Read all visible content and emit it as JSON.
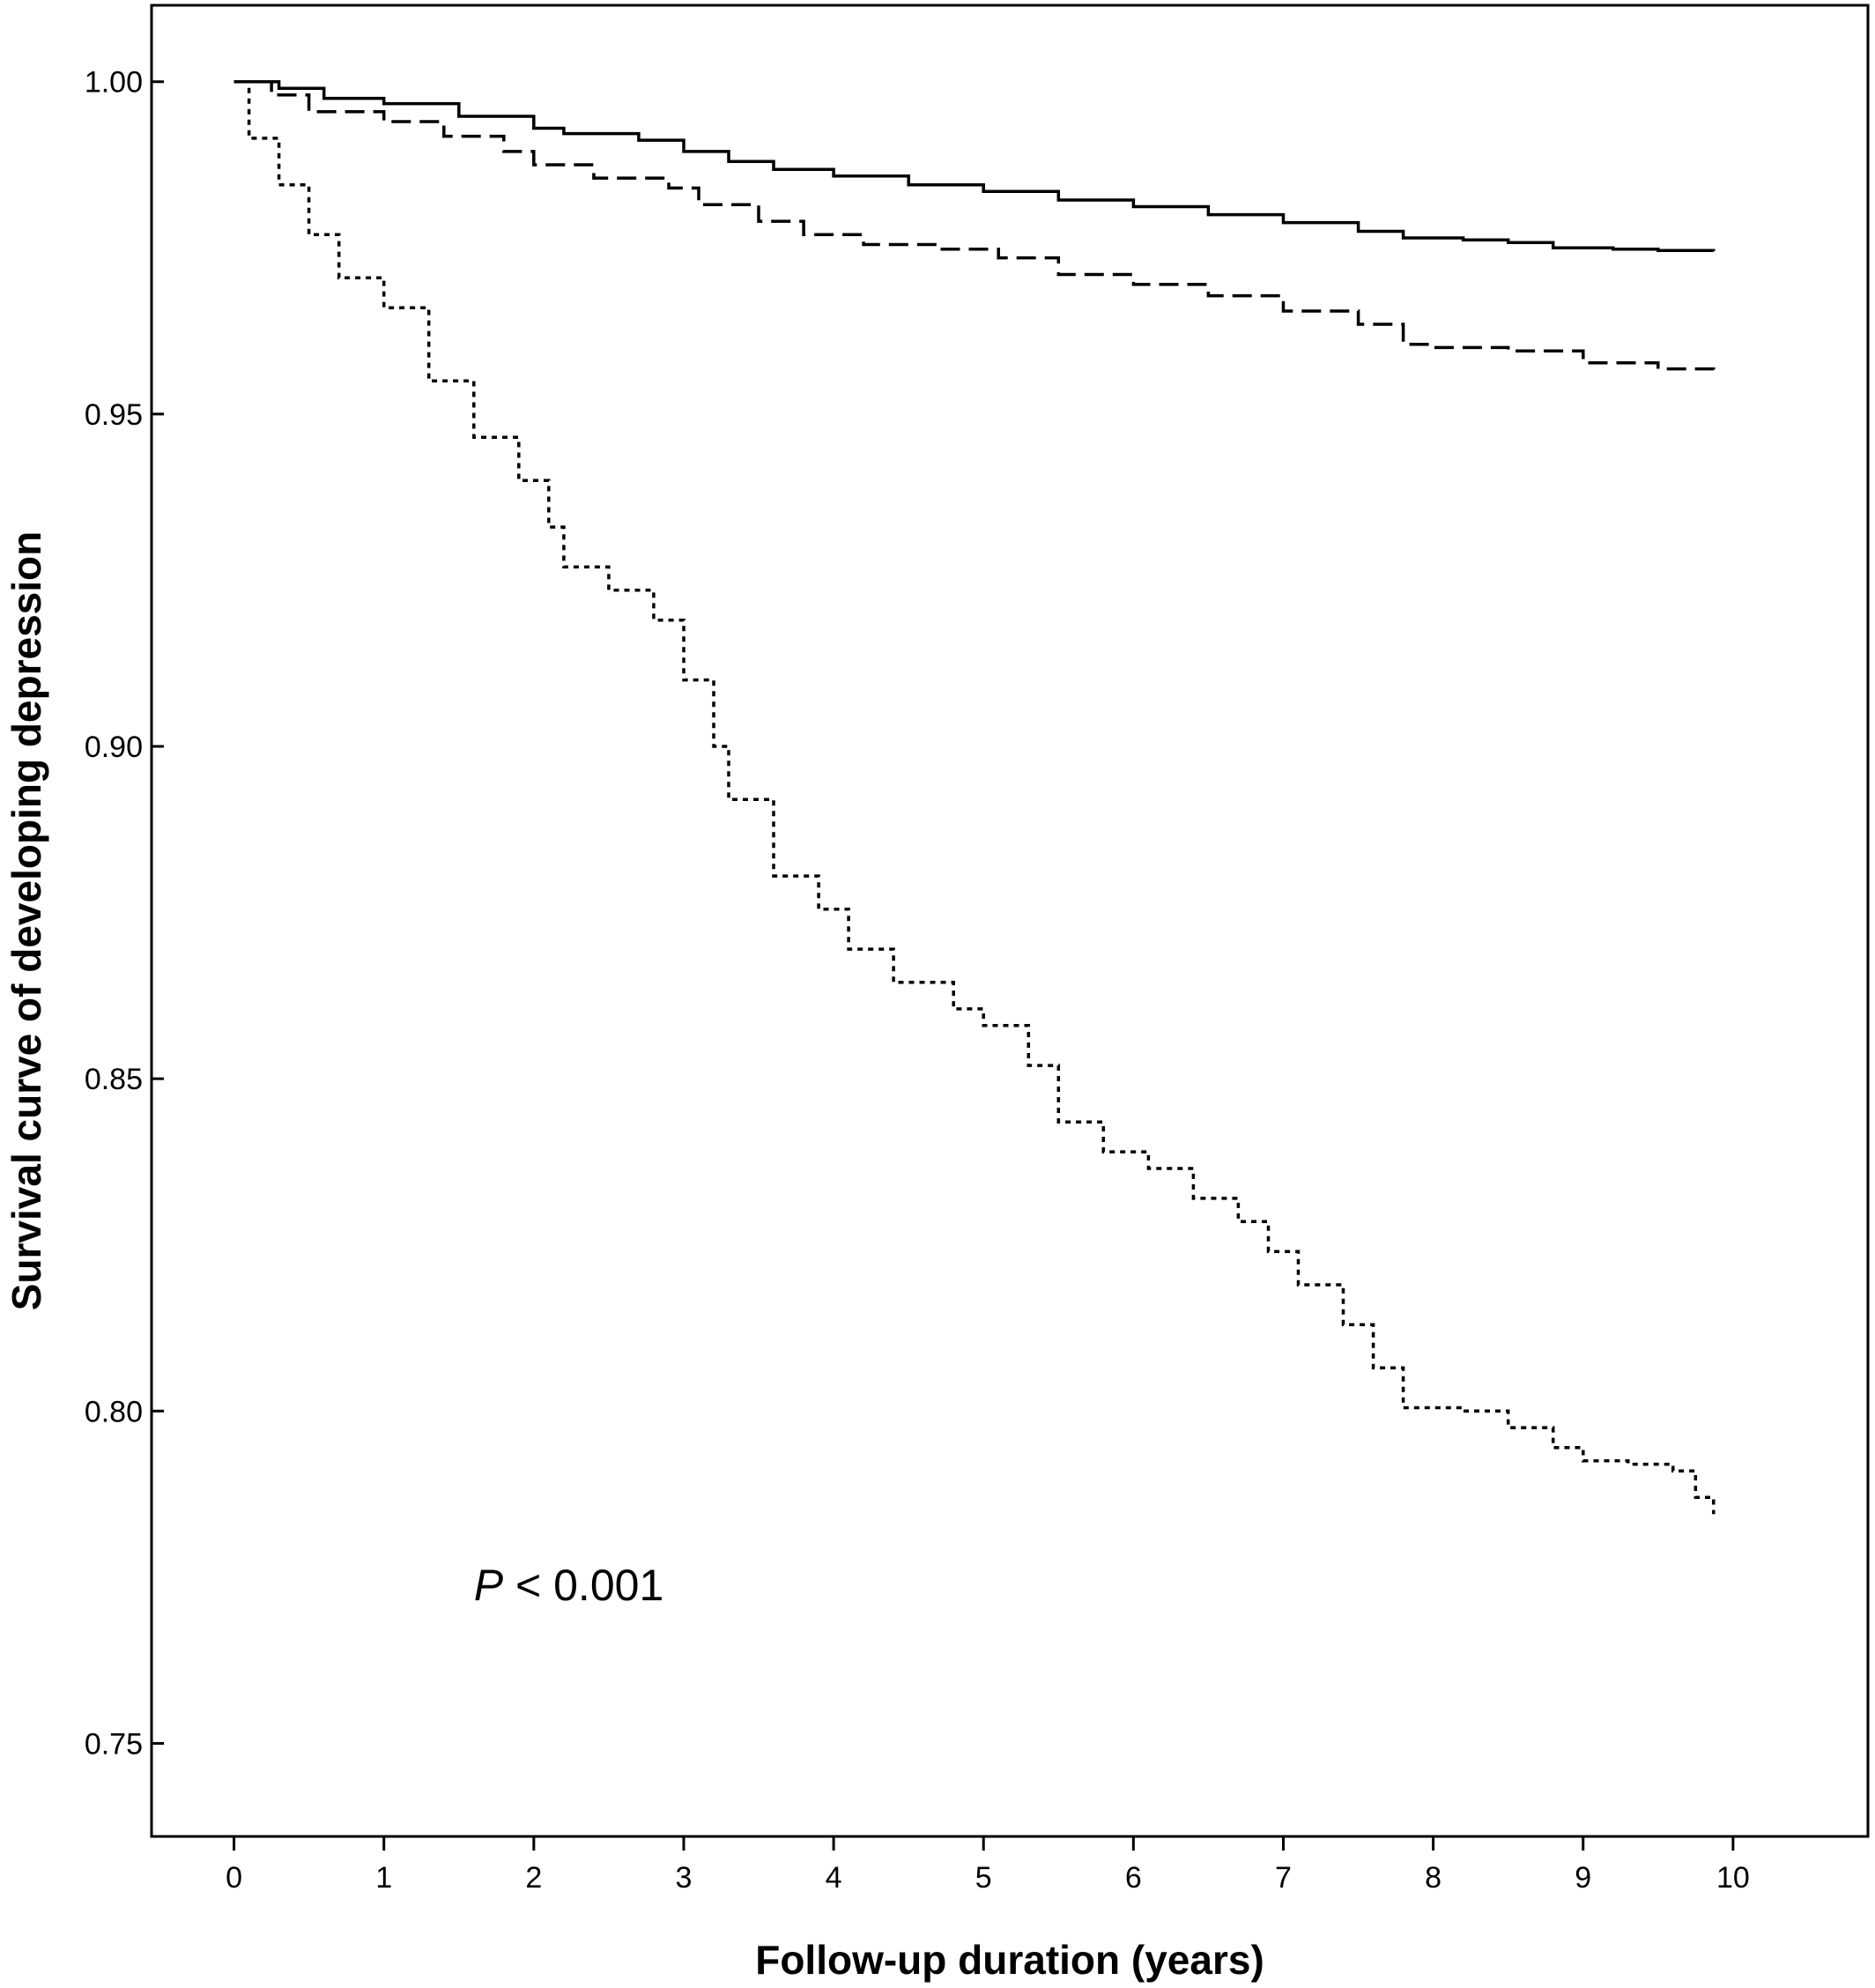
{
  "chart_data": {
    "type": "line",
    "title": "",
    "xlabel": "Follow-up duration (years)",
    "ylabel": "Survival curve of developing depression",
    "xlim": [
      -0.55,
      10.9
    ],
    "ylim": [
      0.736,
      1.0115
    ],
    "x_ticks": [
      "0",
      "1",
      "2",
      "3",
      "4",
      "5",
      "6",
      "7",
      "8",
      "9",
      "10"
    ],
    "y_ticks": [
      "0.75",
      "0.80",
      "0.85",
      "0.90",
      "0.95",
      "1.00"
    ],
    "grid": false,
    "legend": "none",
    "annotation": {
      "italic_part": "P",
      "text_part": " < 0.001",
      "x": 1.6,
      "y": 0.7715
    },
    "series": [
      {
        "style": "solid",
        "points": [
          [
            0,
            1.0
          ],
          [
            0.3,
            0.999
          ],
          [
            0.6,
            0.9975
          ],
          [
            1.0,
            0.9967
          ],
          [
            1.5,
            0.9948
          ],
          [
            2.0,
            0.993
          ],
          [
            2.2,
            0.9922
          ],
          [
            2.7,
            0.9912
          ],
          [
            3.0,
            0.9895
          ],
          [
            3.3,
            0.988
          ],
          [
            3.6,
            0.9868
          ],
          [
            4.0,
            0.9858
          ],
          [
            4.5,
            0.9845
          ],
          [
            5.0,
            0.9835
          ],
          [
            5.5,
            0.9822
          ],
          [
            6.0,
            0.9812
          ],
          [
            6.5,
            0.98
          ],
          [
            7.0,
            0.9788
          ],
          [
            7.5,
            0.9775
          ],
          [
            7.8,
            0.9765
          ],
          [
            8.2,
            0.9762
          ],
          [
            8.5,
            0.9758
          ],
          [
            8.8,
            0.975
          ],
          [
            9.2,
            0.9748
          ],
          [
            9.5,
            0.9746
          ],
          [
            9.87,
            0.9745
          ]
        ]
      },
      {
        "style": "dashed",
        "points": [
          [
            0,
            1.0
          ],
          [
            0.25,
            0.998
          ],
          [
            0.5,
            0.9955
          ],
          [
            1.0,
            0.994
          ],
          [
            1.4,
            0.9918
          ],
          [
            1.8,
            0.9895
          ],
          [
            2.0,
            0.9875
          ],
          [
            2.4,
            0.9855
          ],
          [
            2.9,
            0.984
          ],
          [
            3.1,
            0.9815
          ],
          [
            3.5,
            0.979
          ],
          [
            3.8,
            0.977
          ],
          [
            4.2,
            0.9755
          ],
          [
            4.7,
            0.9748
          ],
          [
            5.1,
            0.9735
          ],
          [
            5.5,
            0.971
          ],
          [
            6.0,
            0.9695
          ],
          [
            6.5,
            0.9678
          ],
          [
            7.0,
            0.9655
          ],
          [
            7.5,
            0.9635
          ],
          [
            7.8,
            0.9605
          ],
          [
            8.0,
            0.96
          ],
          [
            8.5,
            0.9595
          ],
          [
            9.0,
            0.9577
          ],
          [
            9.5,
            0.9568
          ],
          [
            9.87,
            0.9565
          ]
        ]
      },
      {
        "style": "dotted",
        "points": [
          [
            0,
            1.0
          ],
          [
            0.1,
            0.9915
          ],
          [
            0.3,
            0.9845
          ],
          [
            0.5,
            0.977
          ],
          [
            0.7,
            0.9705
          ],
          [
            1.0,
            0.966
          ],
          [
            1.3,
            0.955
          ],
          [
            1.6,
            0.9465
          ],
          [
            1.9,
            0.94
          ],
          [
            2.1,
            0.933
          ],
          [
            2.2,
            0.927
          ],
          [
            2.5,
            0.9235
          ],
          [
            2.8,
            0.919
          ],
          [
            3.0,
            0.91
          ],
          [
            3.2,
            0.9
          ],
          [
            3.3,
            0.892
          ],
          [
            3.6,
            0.8805
          ],
          [
            3.9,
            0.8755
          ],
          [
            4.1,
            0.8695
          ],
          [
            4.4,
            0.8645
          ],
          [
            4.8,
            0.8605
          ],
          [
            5.0,
            0.858
          ],
          [
            5.3,
            0.852
          ],
          [
            5.5,
            0.8435
          ],
          [
            5.8,
            0.839
          ],
          [
            6.1,
            0.8365
          ],
          [
            6.4,
            0.832
          ],
          [
            6.7,
            0.8285
          ],
          [
            6.9,
            0.824
          ],
          [
            7.1,
            0.819
          ],
          [
            7.4,
            0.813
          ],
          [
            7.6,
            0.8065
          ],
          [
            7.8,
            0.8005
          ],
          [
            8.2,
            0.8
          ],
          [
            8.5,
            0.7975
          ],
          [
            8.8,
            0.7945
          ],
          [
            9.0,
            0.7925
          ],
          [
            9.3,
            0.792
          ],
          [
            9.6,
            0.791
          ],
          [
            9.75,
            0.787
          ],
          [
            9.87,
            0.7845
          ]
        ]
      }
    ]
  }
}
